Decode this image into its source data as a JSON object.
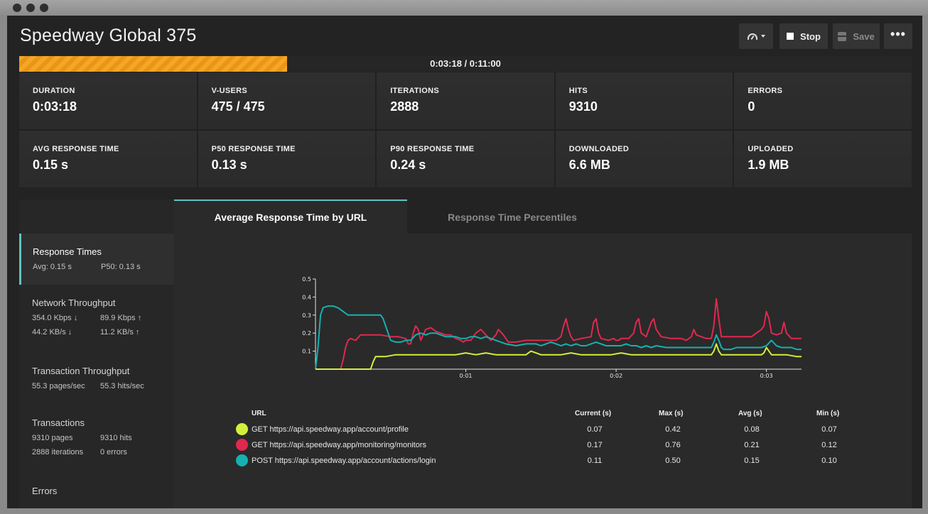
{
  "window": {
    "title": "Speedway Global 375"
  },
  "toolbar": {
    "stop_label": "Stop",
    "save_label": "Save",
    "more_label": "•••"
  },
  "progress": {
    "text": "0:03:18 / 0:11:00",
    "fraction": 0.3
  },
  "stats": [
    {
      "label": "DURATION",
      "value": "0:03:18"
    },
    {
      "label": "V-USERS",
      "value": "475 / 475"
    },
    {
      "label": "ITERATIONS",
      "value": "2888"
    },
    {
      "label": "HITS",
      "value": "9310"
    },
    {
      "label": "ERRORS",
      "value": "0"
    },
    {
      "label": "AVG RESPONSE TIME",
      "value": "0.15 s"
    },
    {
      "label": "P50 RESPONSE TIME",
      "value": "0.13 s"
    },
    {
      "label": "P90 RESPONSE TIME",
      "value": "0.24 s"
    },
    {
      "label": "DOWNLOADED",
      "value": "6.6 MB"
    },
    {
      "label": "UPLOADED",
      "value": "1.9 MB"
    }
  ],
  "sidebar": {
    "response_times": {
      "title": "Response Times",
      "avg": "Avg: 0.15 s",
      "p50": "P50: 0.13 s"
    },
    "network": {
      "title": "Network Throughput",
      "r1c1": "354.0 Kbps ↓",
      "r1c2": "89.9 Kbps ↑",
      "r2c1": "44.2 KB/s ↓",
      "r2c2": "11.2 KB/s ↑"
    },
    "transaction": {
      "title": "Transaction Throughput",
      "c1": "55.3 pages/sec",
      "c2": "55.3 hits/sec"
    },
    "transactions": {
      "title": "Transactions",
      "r1c1": "9310 pages",
      "r1c2": "9310 hits",
      "r2c1": "2888 iterations",
      "r2c2": "0 errors"
    },
    "errors": {
      "title": "Errors"
    }
  },
  "tabs": [
    {
      "label": "Average Response Time by URL"
    },
    {
      "label": "Response Time Percentiles"
    }
  ],
  "table": {
    "headers": {
      "url": "URL",
      "current": "Current (s)",
      "max": "Max (s)",
      "avg": "Avg (s)",
      "min": "Min (s)"
    },
    "rows": [
      {
        "url": "GET https://api.speedway.app/account/profile",
        "current": "0.07",
        "max": "0.42",
        "avg": "0.08",
        "min": "0.07",
        "color": "#d2f03a"
      },
      {
        "url": "GET https://api.speedway.app/monitoring/monitors",
        "current": "0.17",
        "max": "0.76",
        "avg": "0.21",
        "min": "0.12",
        "color": "#e0284f"
      },
      {
        "url": "POST https://api.speedway.app/account/actions/login",
        "current": "0.11",
        "max": "0.50",
        "avg": "0.15",
        "min": "0.10",
        "color": "#16b0b0"
      }
    ]
  },
  "chart_data": {
    "type": "line",
    "ylim": [
      0,
      0.5
    ],
    "xlim": [
      0,
      194
    ],
    "yticks": [
      "0.1",
      "0.2",
      "0.3",
      "0.4",
      "0.5"
    ],
    "xticks": [
      {
        "t": 60,
        "label": "0:01"
      },
      {
        "t": 120,
        "label": "0:02"
      },
      {
        "t": 180,
        "label": "0:03"
      }
    ],
    "series": [
      {
        "color": "#e0284f",
        "x": [
          0,
          10,
          11,
          12,
          13,
          14,
          16,
          18,
          22,
          26,
          30,
          33,
          36,
          37,
          38,
          39,
          40,
          41,
          42,
          44,
          46,
          48,
          50,
          52,
          54,
          56,
          58,
          59,
          60,
          62,
          64,
          66,
          68,
          70,
          72,
          73,
          75,
          77,
          80,
          84,
          88,
          92,
          96,
          98,
          99,
          100,
          101,
          102,
          103,
          106,
          110,
          111,
          112,
          113,
          114,
          117,
          119,
          120,
          121,
          122,
          125,
          127,
          128,
          129,
          130,
          132,
          134,
          135,
          136,
          138,
          142,
          146,
          148,
          150,
          151,
          152,
          154,
          156,
          158,
          159,
          160,
          161,
          162,
          164,
          166,
          168,
          170,
          172,
          174,
          176,
          178,
          179,
          180,
          181,
          182,
          184,
          186,
          187,
          188,
          190,
          192,
          194
        ],
        "y": [
          0,
          0,
          0.05,
          0.12,
          0.16,
          0.17,
          0.16,
          0.19,
          0.19,
          0.19,
          0.18,
          0.18,
          0.17,
          0.14,
          0.14,
          0.2,
          0.24,
          0.22,
          0.16,
          0.22,
          0.23,
          0.21,
          0.2,
          0.19,
          0.19,
          0.17,
          0.16,
          0.15,
          0.16,
          0.16,
          0.2,
          0.22,
          0.19,
          0.16,
          0.19,
          0.22,
          0.19,
          0.15,
          0.15,
          0.16,
          0.16,
          0.16,
          0.16,
          0.18,
          0.24,
          0.28,
          0.22,
          0.18,
          0.16,
          0.17,
          0.18,
          0.26,
          0.28,
          0.2,
          0.17,
          0.16,
          0.17,
          0.16,
          0.16,
          0.17,
          0.17,
          0.2,
          0.26,
          0.28,
          0.2,
          0.18,
          0.26,
          0.28,
          0.22,
          0.18,
          0.17,
          0.17,
          0.16,
          0.18,
          0.22,
          0.19,
          0.18,
          0.17,
          0.17,
          0.24,
          0.39,
          0.28,
          0.18,
          0.18,
          0.18,
          0.18,
          0.18,
          0.18,
          0.18,
          0.2,
          0.22,
          0.24,
          0.32,
          0.28,
          0.2,
          0.19,
          0.2,
          0.26,
          0.2,
          0.17,
          0.17,
          0.17
        ]
      },
      {
        "color": "#16b0b0",
        "x": [
          0,
          1,
          2,
          3,
          5,
          7,
          9,
          11,
          13,
          16,
          20,
          24,
          26,
          27,
          28,
          29,
          30,
          32,
          34,
          36,
          38,
          40,
          42,
          44,
          46,
          48,
          50,
          52,
          54,
          56,
          58,
          60,
          62,
          64,
          66,
          68,
          70,
          72,
          74,
          76,
          80,
          84,
          88,
          90,
          92,
          94,
          96,
          98,
          100,
          102,
          104,
          106,
          108,
          110,
          112,
          114,
          116,
          118,
          120,
          122,
          124,
          126,
          128,
          130,
          132,
          134,
          136,
          140,
          144,
          146,
          148,
          150,
          152,
          154,
          156,
          158,
          159,
          160,
          161,
          162,
          163,
          164,
          166,
          168,
          170,
          172,
          174,
          176,
          178,
          180,
          182,
          184,
          186,
          188,
          190,
          192,
          194
        ],
        "y": [
          0,
          0.12,
          0.3,
          0.34,
          0.35,
          0.35,
          0.34,
          0.32,
          0.3,
          0.3,
          0.3,
          0.3,
          0.3,
          0.28,
          0.24,
          0.2,
          0.16,
          0.15,
          0.15,
          0.16,
          0.16,
          0.19,
          0.2,
          0.19,
          0.2,
          0.2,
          0.19,
          0.18,
          0.18,
          0.18,
          0.17,
          0.17,
          0.18,
          0.18,
          0.17,
          0.18,
          0.17,
          0.16,
          0.15,
          0.14,
          0.13,
          0.14,
          0.14,
          0.13,
          0.14,
          0.15,
          0.14,
          0.13,
          0.14,
          0.13,
          0.14,
          0.13,
          0.13,
          0.14,
          0.15,
          0.14,
          0.13,
          0.13,
          0.13,
          0.13,
          0.14,
          0.13,
          0.13,
          0.12,
          0.13,
          0.12,
          0.13,
          0.12,
          0.12,
          0.12,
          0.12,
          0.12,
          0.12,
          0.12,
          0.12,
          0.12,
          0.15,
          0.19,
          0.16,
          0.12,
          0.11,
          0.11,
          0.11,
          0.12,
          0.12,
          0.12,
          0.12,
          0.12,
          0.12,
          0.13,
          0.16,
          0.13,
          0.12,
          0.12,
          0.12,
          0.11,
          0.11
        ]
      },
      {
        "color": "#d2f03a",
        "x": [
          0,
          22,
          23,
          24,
          25,
          28,
          32,
          36,
          40,
          44,
          48,
          52,
          56,
          60,
          64,
          68,
          72,
          76,
          80,
          84,
          86,
          88,
          90,
          94,
          98,
          102,
          106,
          110,
          114,
          118,
          122,
          126,
          130,
          134,
          138,
          142,
          146,
          150,
          154,
          156,
          158,
          159,
          160,
          161,
          162,
          164,
          168,
          172,
          176,
          178,
          179,
          180,
          181,
          182,
          184,
          188,
          192,
          194
        ],
        "y": [
          0,
          0,
          0.04,
          0.07,
          0.07,
          0.07,
          0.08,
          0.08,
          0.08,
          0.08,
          0.08,
          0.08,
          0.08,
          0.09,
          0.08,
          0.09,
          0.08,
          0.08,
          0.08,
          0.08,
          0.1,
          0.09,
          0.08,
          0.08,
          0.08,
          0.09,
          0.08,
          0.08,
          0.08,
          0.08,
          0.09,
          0.08,
          0.08,
          0.08,
          0.08,
          0.08,
          0.08,
          0.08,
          0.08,
          0.08,
          0.08,
          0.1,
          0.14,
          0.1,
          0.08,
          0.08,
          0.08,
          0.08,
          0.08,
          0.08,
          0.09,
          0.12,
          0.1,
          0.08,
          0.08,
          0.08,
          0.07,
          0.07
        ]
      }
    ]
  }
}
